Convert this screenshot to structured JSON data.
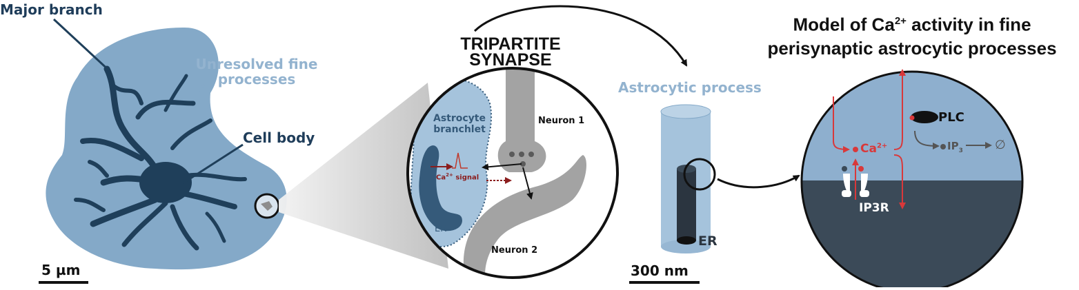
{
  "labels": {
    "major_branch": "Major branch",
    "unresolved_line1": "Unresolved fine",
    "unresolved_line2": "processes",
    "cell_body": "Cell body",
    "scale_left": "5 µm",
    "tripartite_line1": "TRIPARTITE",
    "tripartite_line2": "SYNAPSE",
    "astrocyte_branchlet_line1": "Astrocyte",
    "astrocyte_branchlet_line2": "branchlet",
    "neuron1": "Neuron 1",
    "neuron2": "Neuron 2",
    "ca_signal_prefix": "Ca",
    "ca_signal_sup": "2+",
    "ca_signal_suffix": " signal",
    "er_small": "ER",
    "astrocytic_process": "Astrocytic process",
    "er_cylinder": "ER",
    "scale_right": "300 nm",
    "model_title_line1_prefix": "Model of Ca",
    "model_title_line1_sup": "2+",
    "model_title_line1_suffix": " activity in fine",
    "model_title_line2": "perisynaptic astrocytic processes",
    "plc": "PLC",
    "ca_model_prefix": "Ca",
    "ca_model_sup": "2+",
    "ip3_prefix": "IP",
    "ip3_sub": "3",
    "null_symbol": "∅",
    "ip3r": "IP3R"
  },
  "colors": {
    "astro_light": "#84a9c8",
    "astro_dark": "#1f3f5a",
    "process_light": "#a5c3dc",
    "cytosol": "#8eafce",
    "er_dark": "#3b4a58",
    "calcium_red": "#d9383a",
    "neuron_gray": "#a3a3a3"
  }
}
